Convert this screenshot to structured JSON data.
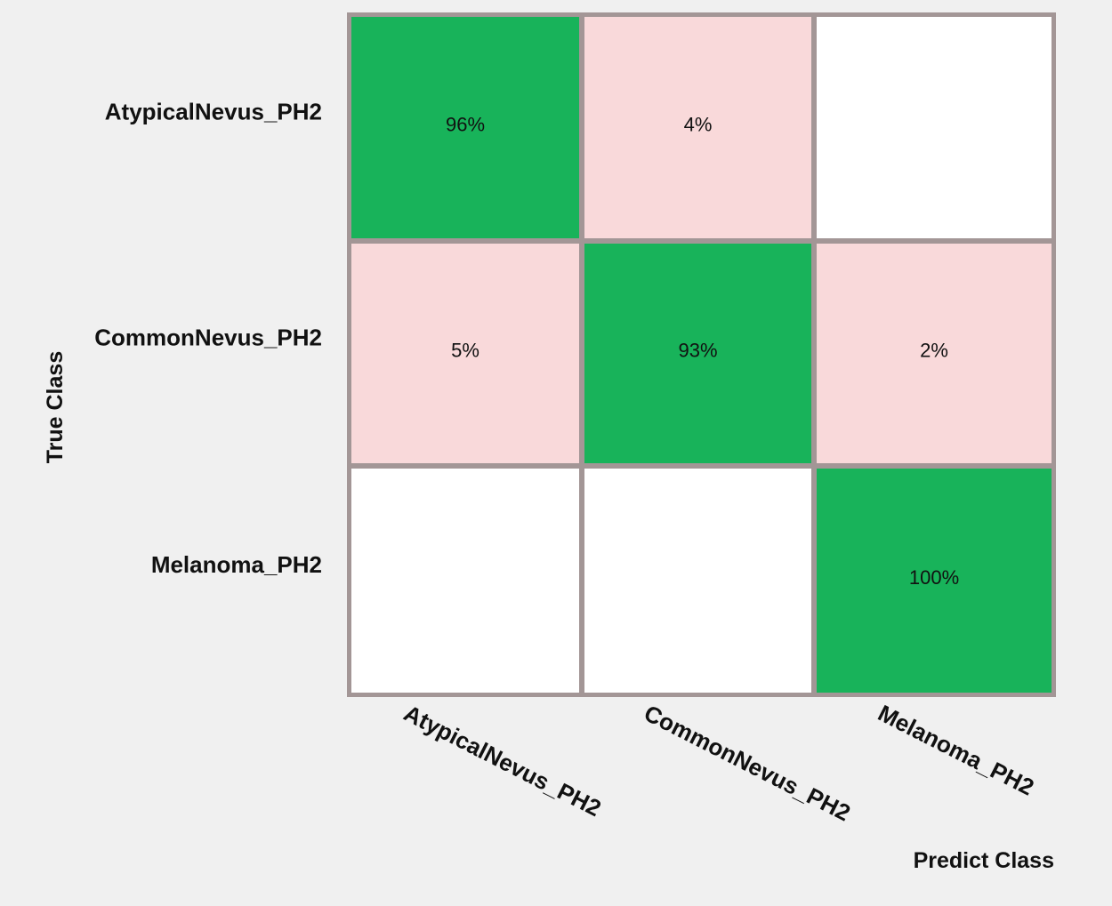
{
  "chart_data": {
    "type": "heatmap",
    "title": "",
    "xlabel": "Predict Class",
    "ylabel": "True Class",
    "rows": [
      "AtypicalNevus_PH2",
      "CommonNevus_PH2",
      "Melanoma_PH2"
    ],
    "columns": [
      "AtypicalNevus_PH2",
      "CommonNevus_PH2",
      "Melanoma_PH2"
    ],
    "values": [
      [
        96,
        4,
        null
      ],
      [
        5,
        93,
        2
      ],
      [
        null,
        null,
        100
      ]
    ],
    "value_labels": [
      [
        "96%",
        "4%",
        ""
      ],
      [
        "5%",
        "93%",
        "2%"
      ],
      [
        "",
        "",
        "100%"
      ]
    ],
    "unit": "%",
    "colors": {
      "diagonal": "#18b35a",
      "off_diagonal": "#f9d9da",
      "empty": "#ffffff",
      "grid": "#a39696",
      "background": "#f0f0f0"
    }
  }
}
